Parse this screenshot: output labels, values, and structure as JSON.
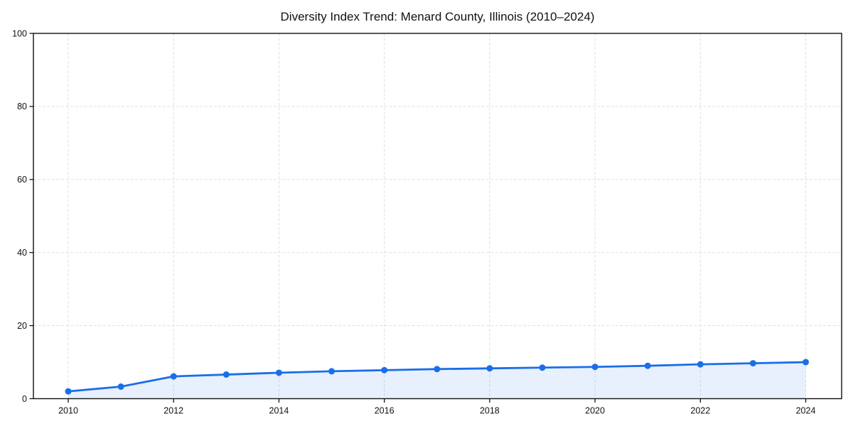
{
  "chart_data": {
    "type": "line",
    "title": "Diversity Index Trend: Menard County, Illinois (2010–2024)",
    "x": [
      2010,
      2011,
      2012,
      2013,
      2014,
      2015,
      2016,
      2017,
      2018,
      2019,
      2020,
      2021,
      2022,
      2023,
      2024
    ],
    "values": [
      2.0,
      3.3,
      6.1,
      6.6,
      7.1,
      7.5,
      7.8,
      8.1,
      8.3,
      8.5,
      8.7,
      9.0,
      9.4,
      9.7,
      10.0
    ],
    "xlabel": "",
    "ylabel": "",
    "ylim": [
      0,
      100
    ],
    "yticks": [
      0,
      20,
      40,
      60,
      80,
      100
    ],
    "xticks": [
      2010,
      2012,
      2014,
      2016,
      2018,
      2020,
      2022,
      2024
    ],
    "grid": true,
    "grid_style": "dashed",
    "legend": false,
    "marker": "circle",
    "area_fill": true,
    "colors": {
      "line": "#1a6ee8",
      "marker": "#1a6ee8",
      "area": "rgba(26, 110, 232, 0.10)",
      "grid": "#e0e0e0",
      "spine": "#111111",
      "tick": "#111111",
      "background": "#ffffff"
    }
  }
}
